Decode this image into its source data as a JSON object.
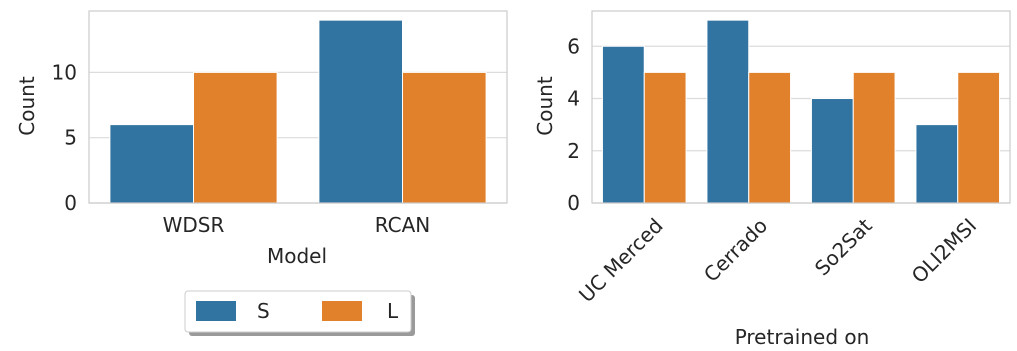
{
  "chart_data": [
    {
      "type": "bar",
      "xlabel": "Model",
      "ylabel": "Count",
      "categories": [
        "WDSR",
        "RCAN"
      ],
      "series": [
        {
          "name": "S",
          "values": [
            6,
            14
          ]
        },
        {
          "name": "L",
          "values": [
            10,
            10
          ]
        }
      ],
      "ylim": [
        0,
        14.7
      ],
      "yticks": [
        0,
        5,
        10
      ],
      "grid": true
    },
    {
      "type": "bar",
      "xlabel": "Pretrained on",
      "ylabel": "Count",
      "categories": [
        "UC Merced",
        "Cerrado",
        "So2Sat",
        "OLI2MSI"
      ],
      "series": [
        {
          "name": "S",
          "values": [
            6,
            7,
            4,
            3
          ]
        },
        {
          "name": "L",
          "values": [
            5,
            5,
            5,
            5
          ]
        }
      ],
      "ylim": [
        0,
        7.35
      ],
      "yticks": [
        0,
        2,
        4,
        6
      ],
      "grid": true
    }
  ],
  "legend": {
    "placement": "bottom-center",
    "items": [
      {
        "label": "S",
        "color": "#3274a1"
      },
      {
        "label": "L",
        "color": "#e1812c"
      }
    ]
  },
  "colors": {
    "S": "#3274a1",
    "L": "#e1812c",
    "grid": "#dcdcdc",
    "spine": "#cccccc"
  }
}
